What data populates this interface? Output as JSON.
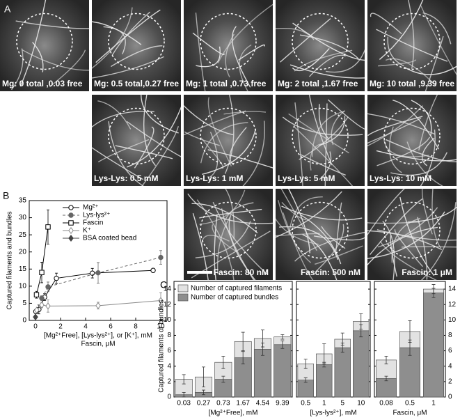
{
  "panel_labels": [
    "A",
    "B",
    "C"
  ],
  "images": [
    {
      "label": "Mg: 0 total ,0.03 free"
    },
    {
      "label": "Mg: 0.5 total,0.27 free"
    },
    {
      "label": "Mg: 1 total ,0.73 free"
    },
    {
      "label": "Mg: 2 total ,1.67 free"
    },
    {
      "label": "Mg: 10 total ,9.39 free"
    },
    {
      "label": "Lys-Lys: 0.5 mM"
    },
    {
      "label": "Lys-Lys: 1 mM"
    },
    {
      "label": "Lys-Lys: 5 mM"
    },
    {
      "label": "Lys-Lys: 10 mM"
    },
    {
      "label": "Fascin: 80 nM"
    },
    {
      "label": "Fascin: 500 nM"
    },
    {
      "label": "Fascin: 1 μM"
    }
  ],
  "chart_data": [
    {
      "type": "line",
      "ylabel": "Captured filaments and bundles",
      "xlabel": "[Mg²⁺Free], [Lys-lys²⁺], or [K⁺], mM",
      "xlabel2": "Fascin, μM",
      "xlim": [
        -0.5,
        10.5
      ],
      "xticks": [
        0,
        2,
        4,
        6,
        8,
        10
      ],
      "ylim": [
        0,
        35
      ],
      "yticks": [
        0,
        5,
        10,
        15,
        20,
        25,
        30,
        35
      ],
      "series": [
        {
          "name": "Mg²⁺",
          "color": "#000000",
          "marker": "circle-open",
          "dashed": false,
          "x": [
            0.03,
            0.27,
            0.73,
            1.67,
            4.54,
            9.39
          ],
          "values": [
            2.6,
            3.2,
            6.8,
            12.3,
            13.8,
            14.6
          ],
          "errors": [
            0.6,
            1.3,
            1,
            1.5,
            1.4,
            0.6
          ]
        },
        {
          "name": "Lys-lys²⁺",
          "color": "#666666",
          "marker": "circle-filled",
          "dashed": true,
          "x": [
            0.5,
            1,
            5,
            10
          ],
          "values": [
            6.5,
            9.8,
            13.9,
            18.4
          ],
          "errors": [
            0.7,
            1.4,
            3,
            2
          ]
        },
        {
          "name": "Fascin",
          "color": "#000000",
          "marker": "square-open",
          "dashed": false,
          "x": [
            0.08,
            0.5,
            1
          ],
          "values": [
            7.5,
            14,
            27.3
          ],
          "errors": [
            1,
            3,
            5
          ]
        },
        {
          "name": "K⁺",
          "color": "#888888",
          "marker": "diamond-open",
          "dashed": false,
          "x": [
            0.1,
            0.5,
            1,
            5,
            10
          ],
          "values": [
            3,
            4.5,
            4.2,
            4.3,
            5.8
          ],
          "errors": [
            0.5,
            0.8,
            1.8,
            1,
            2.3
          ]
        },
        {
          "name": "BSA coated bead",
          "color": "#444444",
          "marker": "diamond-filled",
          "dashed": false,
          "x": [
            0
          ],
          "values": [
            1
          ],
          "errors": [
            0.4
          ]
        }
      ]
    },
    {
      "type": "bar",
      "ylabel": "Captured filaments or bundles",
      "ylim": [
        0,
        15
      ],
      "yticks": [
        0,
        2,
        4,
        6,
        8,
        10,
        12,
        14
      ],
      "series": [
        {
          "name": "Number of captured filaments",
          "color": "#e2e2e2"
        },
        {
          "name": "Number of captured bundles",
          "color": "#8e8e8e"
        }
      ],
      "panels": [
        {
          "xlabel": "[Mg²⁺Free], mM",
          "categories": [
            "0.03",
            "0.27",
            "0.73",
            "1.67",
            "4.54",
            "9.39"
          ],
          "values": [
            [
              2.3,
              2.6,
              4.5,
              7.2,
              7.6,
              7.8
            ],
            [
              0.3,
              0.6,
              2.3,
              5.1,
              6.2,
              6.8
            ]
          ],
          "errors": [
            [
              0.6,
              1.3,
              0.8,
              1.2,
              1.1,
              0.3
            ],
            [
              0.3,
              0.3,
              0.4,
              0.8,
              0.8,
              0.5
            ]
          ]
        },
        {
          "xlabel": "[Lys-lys²⁺], mM",
          "categories": [
            "0.5",
            "1",
            "5",
            "10"
          ],
          "values": [
            [
              4.3,
              5.6,
              7.5,
              9.8
            ],
            [
              2.2,
              4.2,
              6.4,
              8.6
            ]
          ],
          "errors": [
            [
              0.6,
              1.3,
              0.8,
              1
            ],
            [
              0.3,
              0.3,
              0.6,
              0.8
            ]
          ]
        },
        {
          "xlabel": "Fascin, μM",
          "categories": [
            "0.08",
            "0.5",
            "1"
          ],
          "values": [
            [
              4.8,
              8.5,
              14
            ],
            [
              2.4,
              6.4,
              13.5
            ]
          ],
          "errors": [
            [
              0.5,
              1.4,
              0.6
            ],
            [
              0.3,
              1,
              0.6
            ]
          ]
        }
      ]
    }
  ]
}
